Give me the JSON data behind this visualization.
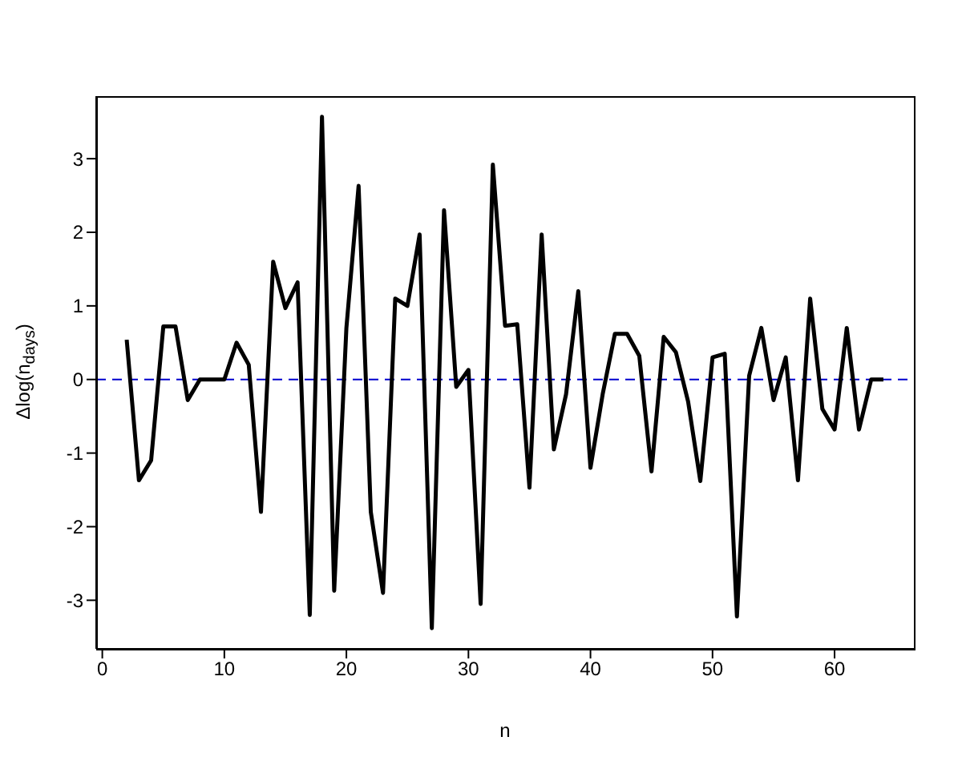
{
  "chart_data": {
    "type": "line",
    "xlabel": "n",
    "ylabel": "Δlog(n$_{days}$)",
    "x": [
      2,
      3,
      4,
      5,
      6,
      7,
      8,
      9,
      10,
      11,
      12,
      13,
      14,
      15,
      16,
      17,
      18,
      19,
      20,
      21,
      22,
      23,
      24,
      25,
      26,
      27,
      28,
      29,
      30,
      31,
      32,
      33,
      34,
      35,
      36,
      37,
      38,
      39,
      40,
      41,
      42,
      43,
      44,
      45,
      46,
      47,
      48,
      49,
      50,
      51,
      52,
      53,
      54,
      55,
      56,
      57,
      58,
      59,
      60,
      61,
      62,
      63,
      64
    ],
    "series": [
      {
        "color": "#000000",
        "values": [
          0.54,
          -1.37,
          -1.1,
          0.72,
          0.72,
          -0.28,
          0,
          0,
          0,
          0.5,
          0.2,
          -1.8,
          1.6,
          0.97,
          1.32,
          -3.2,
          3.57,
          -2.87,
          0.7,
          2.63,
          -1.8,
          -2.9,
          1.1,
          1.0,
          1.97,
          -3.38,
          2.3,
          -0.1,
          0.13,
          -3.05,
          2.92,
          0.73,
          0.75,
          -1.47,
          1.97,
          -0.95,
          -0.2,
          1.2,
          -1.2,
          -0.2,
          0.62,
          0.62,
          0.32,
          -1.25,
          0.58,
          0.37,
          -0.3,
          -1.38,
          0.3,
          0.35,
          -3.22,
          0.05,
          0.7,
          -0.28,
          0.3,
          -1.37,
          1.1,
          -0.4,
          -0.68,
          0.7,
          -0.68,
          0,
          0
        ]
      }
    ],
    "xlim": [
      -0.5,
      66.5
    ],
    "xticks": [
      0,
      10,
      20,
      30,
      40,
      50,
      60
    ],
    "ylim": [
      -3.66,
      3.85
    ],
    "yticks": [
      -3,
      -2,
      -1,
      0,
      1,
      2,
      3
    ],
    "ref_lines": [
      {
        "axis": "y",
        "value": 0,
        "color": "#0000cd",
        "line_style": "dashed"
      }
    ],
    "grid": false,
    "legend": false,
    "marker": "none",
    "line_style": "solid"
  }
}
